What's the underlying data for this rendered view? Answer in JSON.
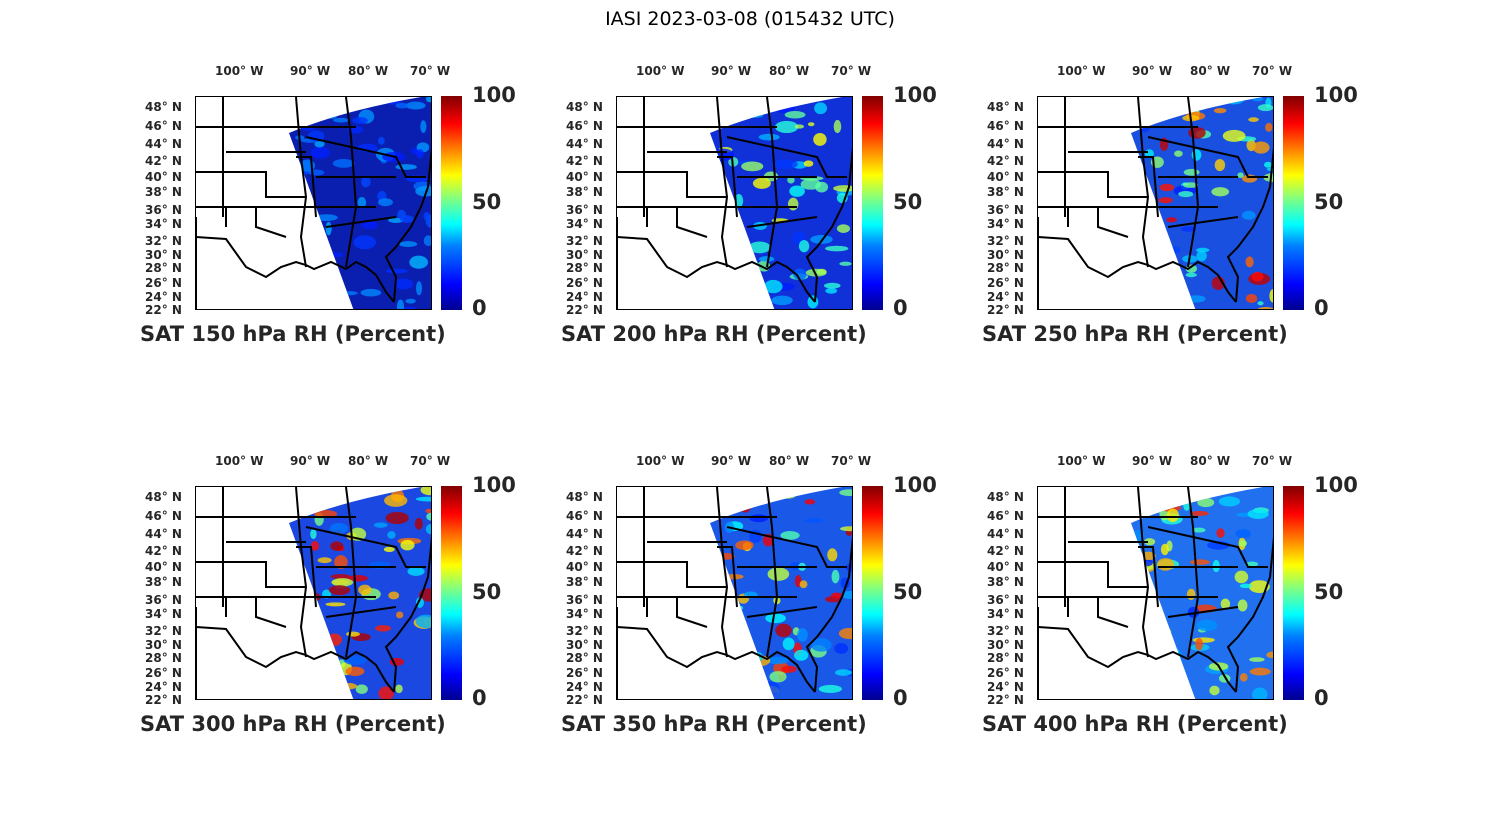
{
  "title": "IASI 2023-03-08 (015432 UTC)",
  "lon_labels": [
    "100° W",
    "90° W",
    "80° W",
    "70° W"
  ],
  "lat_labels": [
    "48° N",
    "46° N",
    "44° N",
    "42° N",
    "40° N",
    "38° N",
    "36° N",
    "34° N",
    "32° N",
    "30° N",
    "28° N",
    "26° N",
    "24° N",
    "22° N"
  ],
  "colorbar": {
    "ticks": [
      "100",
      "50",
      "0"
    ],
    "range": [
      0,
      100
    ],
    "colormap": "jet"
  },
  "panels": [
    {
      "title": "SAT 150 hPa RH (Percent)",
      "base": "#0a1fb0",
      "moist_level": 0.1
    },
    {
      "title": "SAT 200 hPa RH (Percent)",
      "base": "#1030d8",
      "moist_level": 0.3
    },
    {
      "title": "SAT 250 hPa RH (Percent)",
      "base": "#1a50e0",
      "moist_level": 0.5
    },
    {
      "title": "SAT 300 hPa RH (Percent)",
      "base": "#1a48e0",
      "moist_level": 0.55
    },
    {
      "title": "SAT 350 hPa RH (Percent)",
      "base": "#1a58e8",
      "moist_level": 0.5
    },
    {
      "title": "SAT 400 hPa RH (Percent)",
      "base": "#2070f0",
      "moist_level": 0.45
    }
  ]
}
